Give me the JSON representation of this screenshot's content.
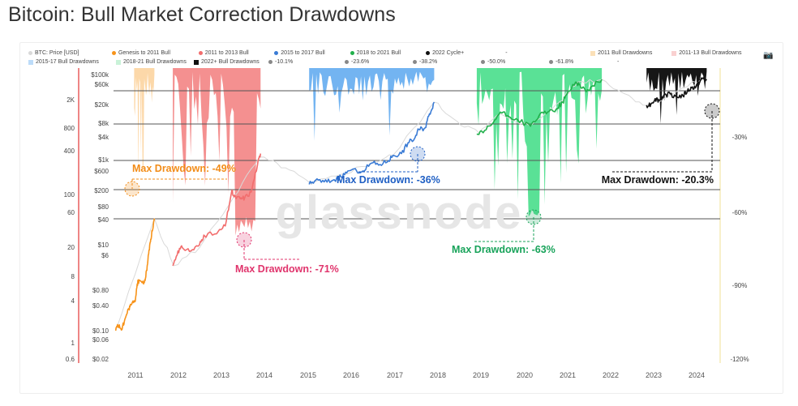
{
  "title": "Bitcoin: Bull Market Correction Drawdowns",
  "watermark": "glassnode",
  "legend": {
    "row1": [
      {
        "label": "BTC: Price [USD]",
        "color": "#d9d9d9",
        "shape": "dot"
      },
      {
        "label": "Genesis to 2011 Bull",
        "color": "#f7931a",
        "shape": "dot"
      },
      {
        "label": "2011 to 2013 Bull",
        "color": "#f26d6d",
        "shape": "dot"
      },
      {
        "label": "2015 to 2017 Bull",
        "color": "#3a7bd5",
        "shape": "dot"
      },
      {
        "label": "2018 to 2021 Bull",
        "color": "#21b04b",
        "shape": "dot"
      },
      {
        "label": "2022 Cycle+",
        "color": "#111111",
        "shape": "dot"
      },
      {
        "label": "-",
        "color": "#ffffff",
        "shape": "none"
      },
      {
        "label": "2011 Bull Drawdowns",
        "color": "#fbe0b8",
        "shape": "sq"
      },
      {
        "label": "2011-13 Bull Drawdowns",
        "color": "#f9d0d0",
        "shape": "sq"
      }
    ],
    "row2": [
      {
        "label": "2015-17 Bull Drawdowns",
        "color": "#bcdcf9",
        "shape": "sq"
      },
      {
        "label": "2018-21 Bull Drawdowns",
        "color": "#c9f2d8",
        "shape": "sq"
      },
      {
        "label": "2022+ Bull Drawdowns",
        "color": "#111111",
        "shape": "sq"
      },
      {
        "label": "-10.1%",
        "color": "#888888",
        "shape": "dot"
      },
      {
        "label": "-23.6%",
        "color": "#888888",
        "shape": "dot"
      },
      {
        "label": "-38.2%",
        "color": "#888888",
        "shape": "dot"
      },
      {
        "label": "-50.0%",
        "color": "#888888",
        "shape": "dot"
      },
      {
        "label": "-61.8%",
        "color": "#888888",
        "shape": "dot"
      },
      {
        "label": "-",
        "color": "#ffffff",
        "shape": "none"
      }
    ]
  },
  "chart_data": {
    "type": "line",
    "title": "Bitcoin: Bull Market Correction Drawdowns",
    "x_ticks": [
      "2011",
      "2012",
      "2013",
      "2014",
      "2015",
      "2016",
      "2017",
      "2018",
      "2019",
      "2020",
      "2021",
      "2022",
      "2023",
      "2024"
    ],
    "y_left_outer": [
      "$100k",
      "$60k",
      "$20k",
      "$8k",
      "$4k",
      "$1k",
      "$600",
      "$200",
      "$80",
      "$40",
      "$10",
      "$6",
      "$0.80",
      "$0.40",
      "$0.10",
      "$0.06",
      "$0.02"
    ],
    "y_left_inner": [
      "2K",
      "800",
      "400",
      "100",
      "60",
      "20",
      "8",
      "4",
      "1",
      "0.6"
    ],
    "y_right": [
      "-30%",
      "-60%",
      "-90%",
      "-120%"
    ],
    "fib_levels": [
      "-10.1%",
      "-23.6%",
      "-38.2%",
      "-50.0%",
      "-61.8%"
    ],
    "series": [
      {
        "name": "BTC: Price [USD]",
        "color": "#d9d9d9",
        "x": [
          2010.55,
          2011.45,
          2011.9,
          2012.5,
          2013.3,
          2013.9,
          2014.5,
          2015.1,
          2015.8,
          2016.5,
          2017.0,
          2017.96,
          2018.5,
          2019.0,
          2019.5,
          2020.2,
          2020.9,
          2021.3,
          2021.86,
          2022.4,
          2022.9,
          2023.5,
          2024.2
        ],
        "y": [
          0.06,
          30,
          2.2,
          6,
          100,
          900,
          500,
          200,
          350,
          650,
          1000,
          19000,
          6500,
          3500,
          10000,
          5000,
          20000,
          58000,
          67000,
          30000,
          16000,
          30000,
          70000
        ]
      },
      {
        "name": "Genesis to 2011 Bull",
        "color": "#f7931a",
        "x": [
          2010.55,
          2010.6,
          2010.7,
          2010.75,
          2010.85,
          2010.9,
          2011.0,
          2011.05,
          2011.1,
          2011.2,
          2011.25,
          2011.3,
          2011.35,
          2011.4,
          2011.45
        ],
        "y": [
          0.06,
          0.08,
          0.065,
          0.1,
          0.2,
          0.25,
          0.3,
          0.8,
          1.0,
          0.8,
          1.2,
          3,
          8,
          15,
          30
        ]
      },
      {
        "name": "2011 to 2013 Bull",
        "color": "#f26d6d",
        "x": [
          2011.88,
          2012.0,
          2012.1,
          2012.3,
          2012.5,
          2012.6,
          2012.9,
          2013.1,
          2013.25,
          2013.3,
          2013.45,
          2013.55,
          2013.7,
          2013.85,
          2013.92
        ],
        "y": [
          2.2,
          5,
          6,
          5,
          7,
          12,
          13,
          20,
          140,
          100,
          90,
          95,
          130,
          600,
          1100
        ]
      },
      {
        "name": "2015 to 2017 Bull",
        "color": "#3a7bd5",
        "x": [
          2015.05,
          2015.2,
          2015.4,
          2015.6,
          2015.8,
          2015.95,
          2016.3,
          2016.5,
          2016.7,
          2016.9,
          2017.0,
          2017.2,
          2017.35,
          2017.5,
          2017.6,
          2017.75,
          2017.85,
          2017.96
        ],
        "y": [
          200,
          250,
          230,
          250,
          300,
          420,
          420,
          650,
          600,
          750,
          1000,
          1100,
          2000,
          2500,
          4200,
          4600,
          10000,
          19000
        ]
      },
      {
        "name": "2018 to 2021 Bull",
        "color": "#21b04b",
        "x": [
          2018.95,
          2019.1,
          2019.3,
          2019.5,
          2019.7,
          2019.9,
          2020.2,
          2020.4,
          2020.6,
          2020.8,
          2020.95,
          2021.05,
          2021.25,
          2021.35,
          2021.5,
          2021.65,
          2021.86
        ],
        "y": [
          3200,
          3500,
          5500,
          11000,
          8500,
          7200,
          5000,
          9000,
          11000,
          13000,
          19000,
          30000,
          58000,
          50000,
          34000,
          47000,
          67000
        ]
      },
      {
        "name": "2022 Cycle+",
        "color": "#111111",
        "x": [
          2022.9,
          2023.0,
          2023.1,
          2023.2,
          2023.3,
          2023.45,
          2023.6,
          2023.75,
          2023.85,
          2023.95,
          2024.05,
          2024.15,
          2024.2,
          2024.3
        ],
        "y": [
          16000,
          17000,
          23000,
          21000,
          28000,
          30000,
          26000,
          27000,
          35000,
          42000,
          45000,
          62000,
          71000,
          64000
        ]
      }
    ],
    "drawdowns": [
      {
        "name": "2011 Bull Drawdowns",
        "color": "#fbd19a",
        "x_start": 2010.98,
        "x_end": 2011.45,
        "max_drawdown": "-49%"
      },
      {
        "name": "2011-13 Bull Drawdowns",
        "color": "#f27c7c",
        "x_start": 2011.88,
        "x_end": 2013.92,
        "max_drawdown": "-71%"
      },
      {
        "name": "2015-17 Bull Drawdowns",
        "color": "#5aa7ee",
        "x_start": 2015.05,
        "x_end": 2017.96,
        "max_drawdown": "-36%"
      },
      {
        "name": "2018-21 Bull Drawdowns",
        "color": "#3ddc84",
        "x_start": 2018.95,
        "x_end": 2021.86,
        "max_drawdown": "-63%"
      },
      {
        "name": "2022+ Bull Drawdowns",
        "color": "#0a0a0a",
        "x_start": 2022.9,
        "x_end": 2024.3,
        "max_drawdown": "-20.3%"
      }
    ],
    "annotations": [
      {
        "label": "Max Drawdown: -49%",
        "color": "#f28c18"
      },
      {
        "label": "Max Drawdown: -71%",
        "color": "#e0346c"
      },
      {
        "label": "Max Drawdown: -36%",
        "color": "#1f5fc4"
      },
      {
        "label": "Max Drawdown: -63%",
        "color": "#18a35a"
      },
      {
        "label": "Max Drawdown: -20.3%",
        "color": "#111111"
      }
    ],
    "grid": false,
    "legend_position": "top",
    "yscale": "log"
  }
}
